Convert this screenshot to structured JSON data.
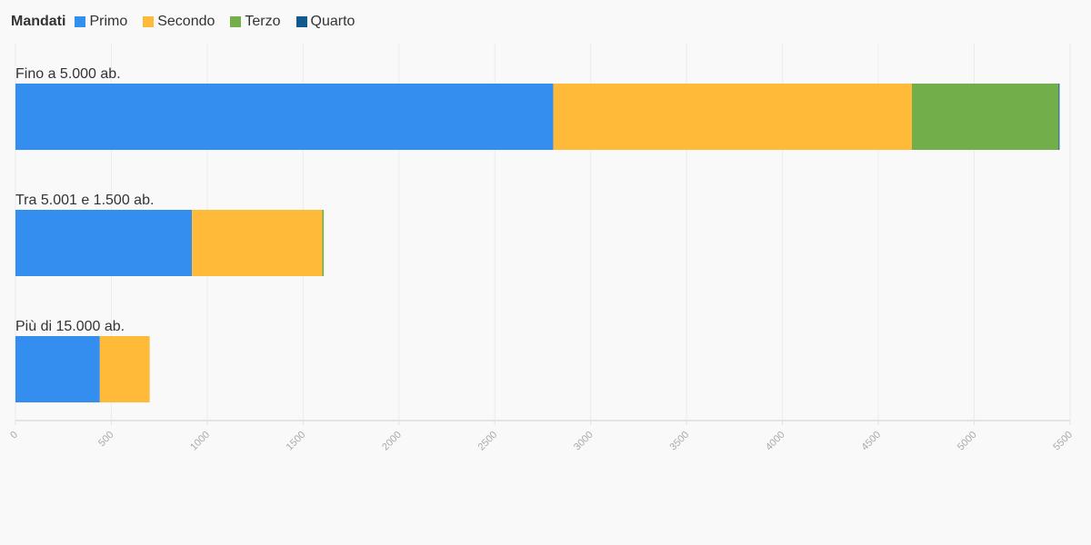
{
  "chart_data": {
    "type": "bar",
    "orientation": "horizontal",
    "stacked": true,
    "legend_title": "Mandati",
    "categories": [
      "Fino a 5.000 ab.",
      "Tra 5.001 e 1.500 ab.",
      "Più di 15.000 ab."
    ],
    "series": [
      {
        "name": "Primo",
        "color": "#338eef",
        "values": [
          2805,
          920,
          440
        ]
      },
      {
        "name": "Secondo",
        "color": "#ffba3a",
        "values": [
          1870,
          680,
          260
        ]
      },
      {
        "name": "Terzo",
        "color": "#72ae4a",
        "values": [
          765,
          8,
          0
        ]
      },
      {
        "name": "Quarto",
        "color": "#125a8e",
        "values": [
          5,
          0,
          0
        ]
      }
    ],
    "xlim": [
      0,
      5500
    ],
    "x_ticks": [
      "0",
      "500",
      "1000",
      "1500",
      "2000",
      "2500",
      "3000",
      "3500",
      "4000",
      "4500",
      "5000",
      "5500"
    ],
    "grid": true,
    "legend_position": "top-left"
  }
}
